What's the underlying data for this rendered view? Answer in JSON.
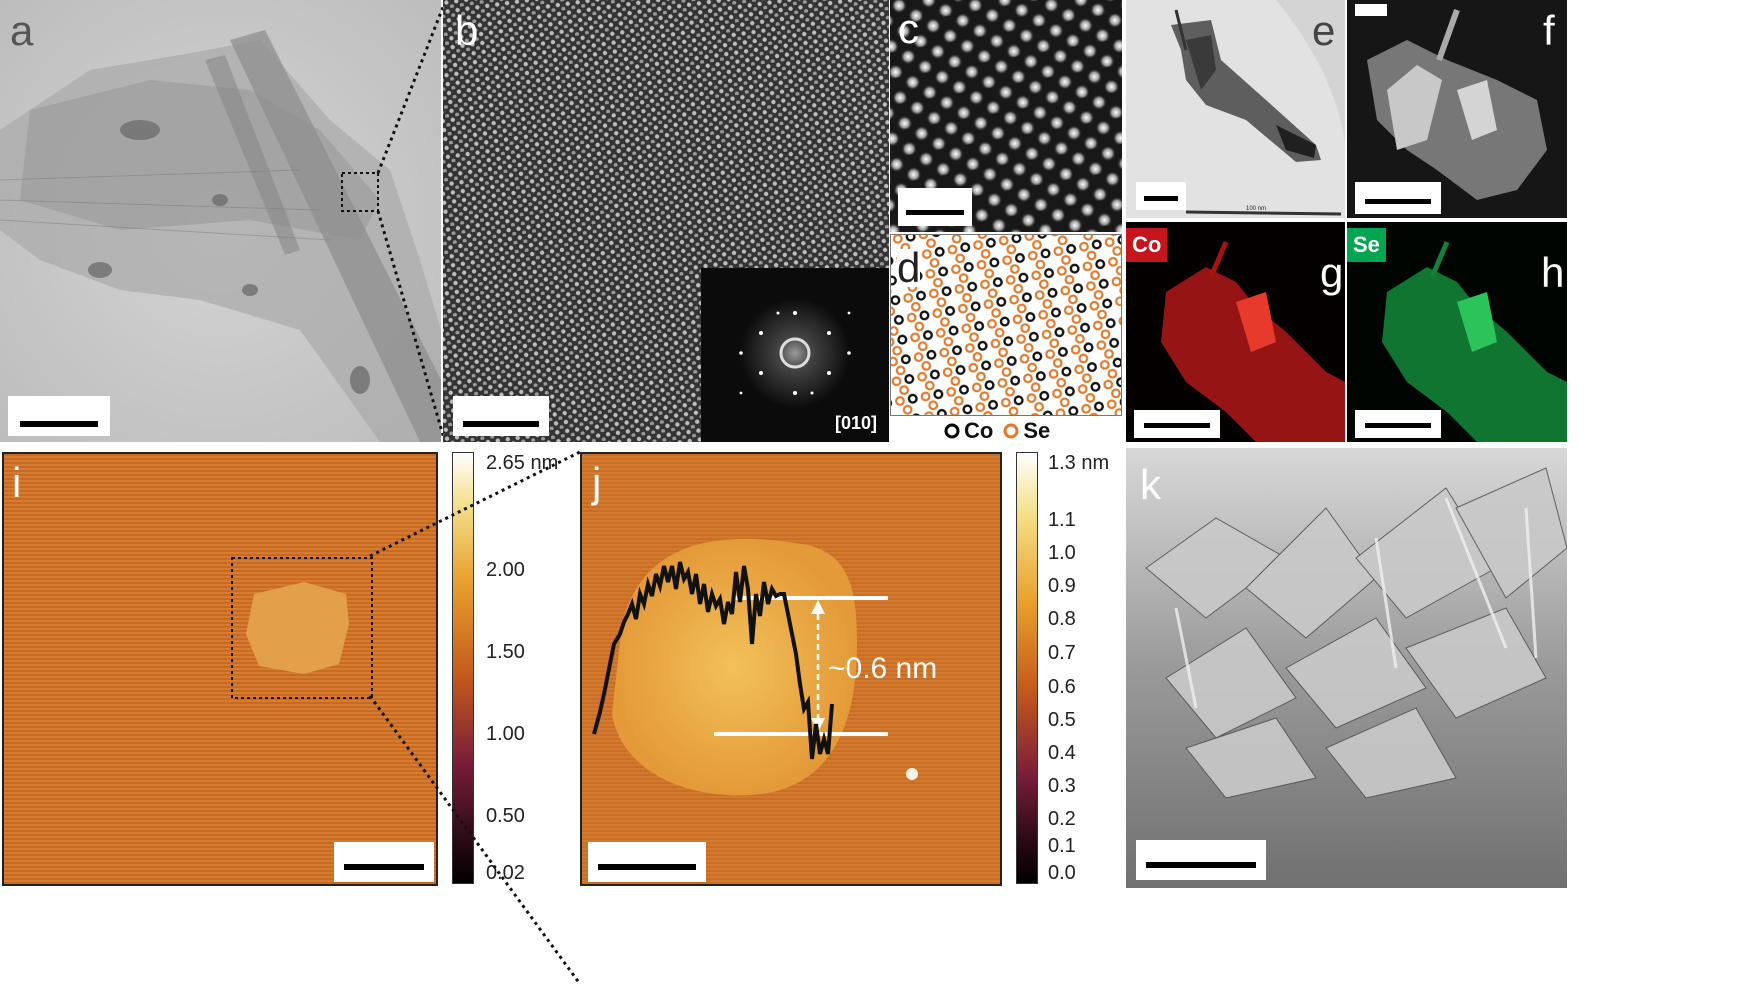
{
  "figure": {
    "panels": {
      "a": {
        "label": "a"
      },
      "b": {
        "label": "b",
        "fft_zone_axis": "[010]"
      },
      "c": {
        "label": "c"
      },
      "d": {
        "label": "d",
        "legend": [
          {
            "symbol": "Co",
            "color": "#000000"
          },
          {
            "symbol": "Se",
            "color": "#e07a2e"
          }
        ]
      },
      "e": {
        "label": "e",
        "scale_text": "100 nm"
      },
      "f": {
        "label": "f"
      },
      "g": {
        "label": "g",
        "element_tag": "Co",
        "tag_color": "#c4161c",
        "map_color": "#d8261c"
      },
      "h": {
        "label": "h",
        "element_tag": "Se",
        "tag_color": "#00a651",
        "map_color": "#1fa64a"
      },
      "i": {
        "label": "i",
        "colorbar_ticks": [
          "2.65 nm",
          "2.00",
          "1.50",
          "1.00",
          "0.50",
          "0.02"
        ]
      },
      "j": {
        "label": "j",
        "annotation": "~0.6 nm",
        "colorbar_ticks": [
          "1.3 nm",
          "1.1",
          "1.0",
          "0.9",
          "0.8",
          "0.7",
          "0.6",
          "0.5",
          "0.4",
          "0.3",
          "0.2",
          "0.1",
          "0.0"
        ]
      },
      "k": {
        "label": "k"
      }
    }
  }
}
